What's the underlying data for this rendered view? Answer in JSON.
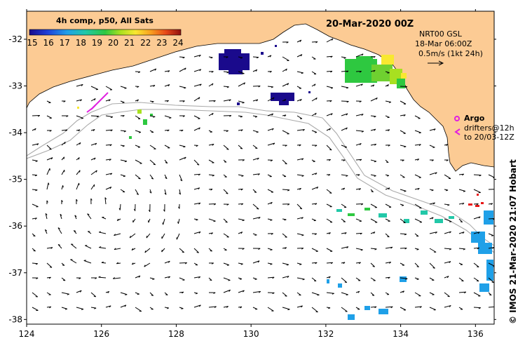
{
  "title": "20-Mar-2020 00Z",
  "colorbar": {
    "label": "4h comp, p50, All Sats",
    "ticks": [
      "15",
      "16",
      "17",
      "18",
      "19",
      "20",
      "21",
      "22",
      "23",
      "24"
    ],
    "stops": [
      "#1a0a8c",
      "#1f3fd8",
      "#1fa0e8",
      "#22c8a8",
      "#2ec840",
      "#a8e020",
      "#f8e830",
      "#f8a020",
      "#e84818",
      "#901010"
    ]
  },
  "current_info": {
    "line1": "NRT00 GSL",
    "line2": "18-Mar 06:00Z",
    "line3": "0.5m/s (1kt 24h)"
  },
  "argo": {
    "label": "Argo",
    "line2": "drifters@12h",
    "line3": "to 20/03-12Z",
    "color": "#e020e0"
  },
  "credit": "© IMOS 21-Mar-2020 21:07 Hobart",
  "axes": {
    "x_ticks": [
      "124",
      "126",
      "128",
      "130",
      "132",
      "134",
      "136"
    ],
    "y_ticks": [
      "-32",
      "-33",
      "-34",
      "-35",
      "-36",
      "-37",
      "-38"
    ],
    "lon_range": [
      124,
      136.5
    ],
    "lat_range": [
      -38.1,
      -31.4
    ]
  },
  "colors": {
    "land": "#fccb94",
    "ocean": "#ffffff",
    "contour": "#aaaaaa"
  }
}
